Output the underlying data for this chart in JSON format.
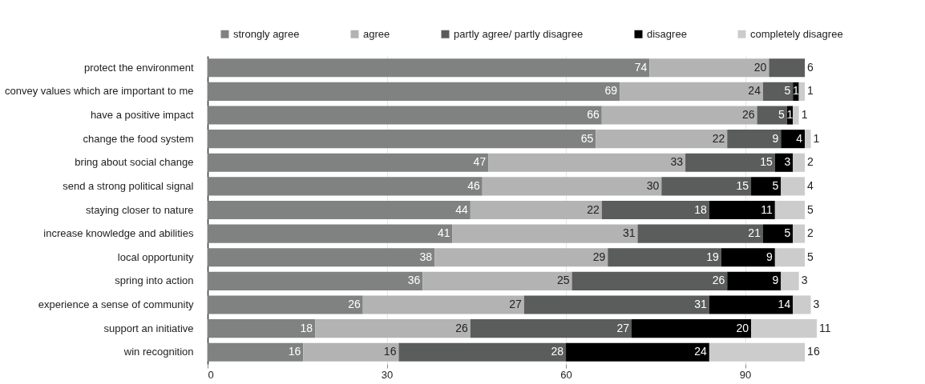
{
  "chart_data": {
    "type": "bar",
    "orientation": "horizontal",
    "stacked": true,
    "data_labels": true,
    "legend": "top right",
    "grid": "x",
    "categories": [
      "protect the environment",
      "convey values which are important to me",
      "have a positive impact",
      "change the food system",
      "bring about social change",
      "send a strong political signal",
      "staying closer to nature",
      "increase knowledge and abilities",
      "local opportunity",
      "spring into action",
      "experience a sense of community",
      "support an initiative",
      "win recognition"
    ],
    "xlim": [
      0,
      102
    ],
    "xticks": [
      0,
      30,
      60,
      90
    ],
    "series": [
      {
        "name": "strongly agree",
        "color": "#7f8280",
        "values": [
          74,
          69,
          66,
          65,
          47,
          46,
          44,
          41,
          38,
          36,
          26,
          18,
          16
        ]
      },
      {
        "name": "agree",
        "color": "#b3b3b3",
        "values": [
          20,
          24,
          26,
          22,
          33,
          30,
          22,
          31,
          29,
          25,
          27,
          26,
          16
        ]
      },
      {
        "name": "partly agree/ partly disagree",
        "color": "#5a5d5b",
        "values": [
          6,
          5,
          5,
          9,
          15,
          15,
          18,
          21,
          19,
          26,
          31,
          27,
          28
        ]
      },
      {
        "name": "disagree",
        "color": "#000000",
        "values": [
          null,
          1,
          1,
          4,
          3,
          5,
          11,
          5,
          9,
          9,
          14,
          20,
          24
        ]
      },
      {
        "name": "completely disagree",
        "color": "#cccccc",
        "values": [
          null,
          1,
          1,
          1,
          2,
          4,
          5,
          2,
          5,
          3,
          3,
          11,
          16
        ]
      }
    ]
  }
}
